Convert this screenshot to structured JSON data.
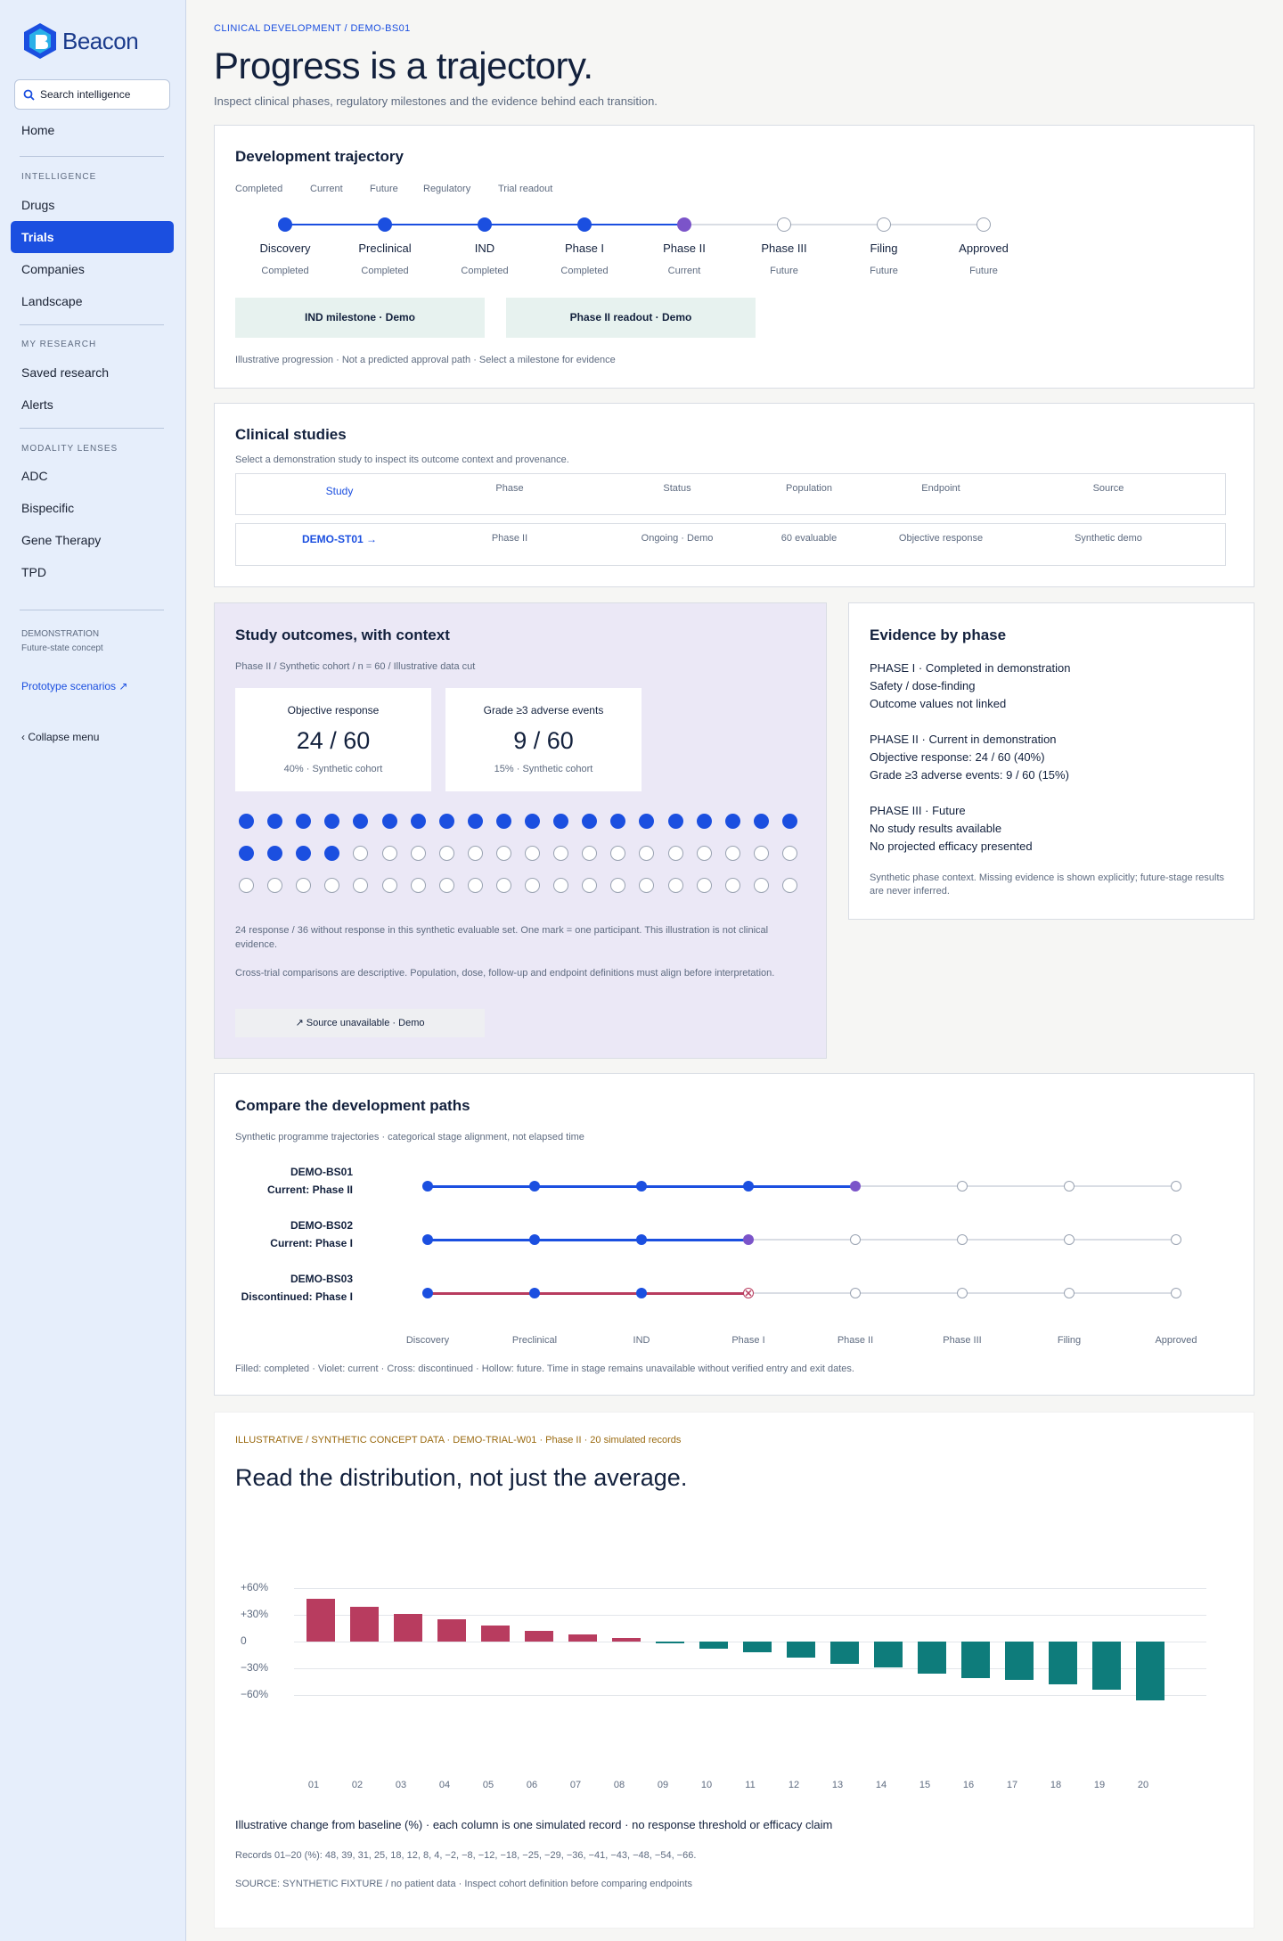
{
  "app": {
    "name": "Beacon",
    "search_placeholder": "Search intelligence"
  },
  "sidebar": {
    "home": "Home",
    "sections": [
      {
        "title": "INTELLIGENCE",
        "items": [
          "Drugs",
          "Trials",
          "Companies",
          "Landscape"
        ]
      },
      {
        "title": "MY RESEARCH",
        "items": [
          "Saved research",
          "Alerts"
        ]
      },
      {
        "title": "MODALITY LENSES",
        "items": [
          "ADC",
          "Bispecific",
          "Gene Therapy",
          "TPD"
        ]
      }
    ],
    "active_item": "Trials",
    "demo_title": "DEMONSTRATION",
    "demo_sub": "Future-state concept",
    "prototype_link": "Prototype scenarios ↗",
    "collapse": "‹  Collapse menu"
  },
  "header": {
    "breadcrumb": "CLINICAL DEVELOPMENT  /  DEMO-BS01",
    "title": "Progress is a trajectory.",
    "subtitle": "Inspect clinical phases, regulatory milestones and the evidence behind each transition."
  },
  "trajectory": {
    "title": "Development trajectory",
    "legend": [
      "Completed",
      "Current",
      "Future",
      "Regulatory",
      "Trial readout"
    ],
    "stages": [
      {
        "name": "Discovery",
        "status": "Completed",
        "state": "completed"
      },
      {
        "name": "Preclinical",
        "status": "Completed",
        "state": "completed"
      },
      {
        "name": "IND",
        "status": "Completed",
        "state": "completed"
      },
      {
        "name": "Phase I",
        "status": "Completed",
        "state": "completed"
      },
      {
        "name": "Phase II",
        "status": "Current",
        "state": "current"
      },
      {
        "name": "Phase III",
        "status": "Future",
        "state": "future"
      },
      {
        "name": "Filing",
        "status": "Future",
        "state": "future"
      },
      {
        "name": "Approved",
        "status": "Future",
        "state": "future"
      }
    ],
    "milestones": [
      "IND milestone · Demo",
      "Phase II readout · Demo"
    ],
    "note": "Illustrative progression · Not a predicted approval path · Select a milestone for evidence"
  },
  "studies": {
    "title": "Clinical studies",
    "subtitle": "Select a demonstration study to inspect its outcome context and provenance.",
    "columns": [
      "Study",
      "Phase",
      "Status",
      "Population",
      "Endpoint",
      "Source"
    ],
    "rows": [
      [
        "DEMO-ST01 →",
        "Phase II",
        "Ongoing · Demo",
        "60 evaluable",
        "Objective response",
        "Synthetic demo"
      ]
    ]
  },
  "outcomes": {
    "title": "Study outcomes, with context",
    "meta": "Phase II  /  Synthetic cohort  /  n = 60  /  Illustrative data cut",
    "metrics": [
      {
        "label": "Objective response",
        "value": "24 / 60",
        "sub": "40% · Synthetic cohort"
      },
      {
        "label": "Grade ≥3 adverse events",
        "value": "9 / 60",
        "sub": "15% · Synthetic cohort"
      }
    ],
    "responders": 24,
    "total": 60,
    "note1": "24 response / 36 without response in this synthetic evaluable set. One mark = one participant. This illustration is not clinical evidence.",
    "note2": "Cross-trial comparisons are descriptive. Population, dose, follow-up and endpoint definitions must align before interpretation.",
    "source_button": "↗  Source unavailable · Demo"
  },
  "evidence": {
    "title": "Evidence by phase",
    "blocks": [
      [
        "PHASE I · Completed in demonstration",
        "Safety / dose-finding",
        "Outcome values not linked"
      ],
      [
        "PHASE II · Current in demonstration",
        "Objective response: 24 / 60 (40%)",
        "Grade ≥3 adverse events: 9 / 60 (15%)"
      ],
      [
        "PHASE III · Future",
        "No study results available",
        "No projected efficacy presented"
      ]
    ],
    "note": "Synthetic phase context. Missing evidence is shown explicitly; future-stage results are never inferred."
  },
  "compare": {
    "title": "Compare the development paths",
    "subtitle": "Synthetic programme trajectories · categorical stage alignment, not elapsed time",
    "stages": [
      "Discovery",
      "Preclinical",
      "IND",
      "Phase I",
      "Phase II",
      "Phase III",
      "Filing",
      "Approved"
    ],
    "programmes": [
      {
        "name": "DEMO-BS01",
        "status": "Current: Phase II",
        "completed": 4,
        "marker": "current",
        "color": "#1b4fe0"
      },
      {
        "name": "DEMO-BS02",
        "status": "Current: Phase I",
        "completed": 3,
        "marker": "current",
        "color": "#1b4fe0"
      },
      {
        "name": "DEMO-BS03",
        "status": "Discontinued: Phase I",
        "completed": 3,
        "marker": "discontinued",
        "color": "#b83c5f"
      }
    ],
    "note": "Filled: completed · Violet: current · Cross: discontinued · Hollow: future. Time in stage remains unavailable without verified entry and exit dates."
  },
  "distribution": {
    "eyebrow": "ILLUSTRATIVE / SYNTHETIC CONCEPT DATA · DEMO-TRIAL-W01 · Phase II · 20 simulated records",
    "title": "Read the distribution, not just the average.",
    "caption": "Illustrative change from baseline (%) · each column is one simulated record · no response threshold or efficacy claim",
    "records_note": "Records 01–20 (%): 48, 39, 31, 25, 18, 12, 8, 4, −2, −8, −12, −18, −25, −29, −36, −41, −43, −48, −54, −66.",
    "source": "SOURCE: SYNTHETIC FIXTURE / no patient data · Inspect cohort definition before comparing endpoints"
  },
  "chart_data": {
    "type": "bar",
    "title": "",
    "xlabel": "",
    "ylabel": "",
    "categories": [
      "01",
      "02",
      "03",
      "04",
      "05",
      "06",
      "07",
      "08",
      "09",
      "10",
      "11",
      "12",
      "13",
      "14",
      "15",
      "16",
      "17",
      "18",
      "19",
      "20"
    ],
    "values": [
      48,
      39,
      31,
      25,
      18,
      12,
      8,
      4,
      -2,
      -8,
      -12,
      -18,
      -25,
      -29,
      -36,
      -41,
      -43,
      -48,
      -54,
      -66
    ],
    "ylim": [
      -60,
      60
    ],
    "yticks": [
      "+60%",
      "+30%",
      "0",
      "−30%",
      "−60%"
    ],
    "ytick_values": [
      60,
      30,
      0,
      -30,
      -60
    ],
    "grid": true,
    "colors": {
      "positive": "#b83c5f",
      "negative": "#0e7c7b"
    }
  },
  "colors": {
    "accent": "#1b4fe0",
    "current": "#7b54c9",
    "discontinued": "#b83c5f",
    "teal": "#0e7c7b"
  }
}
